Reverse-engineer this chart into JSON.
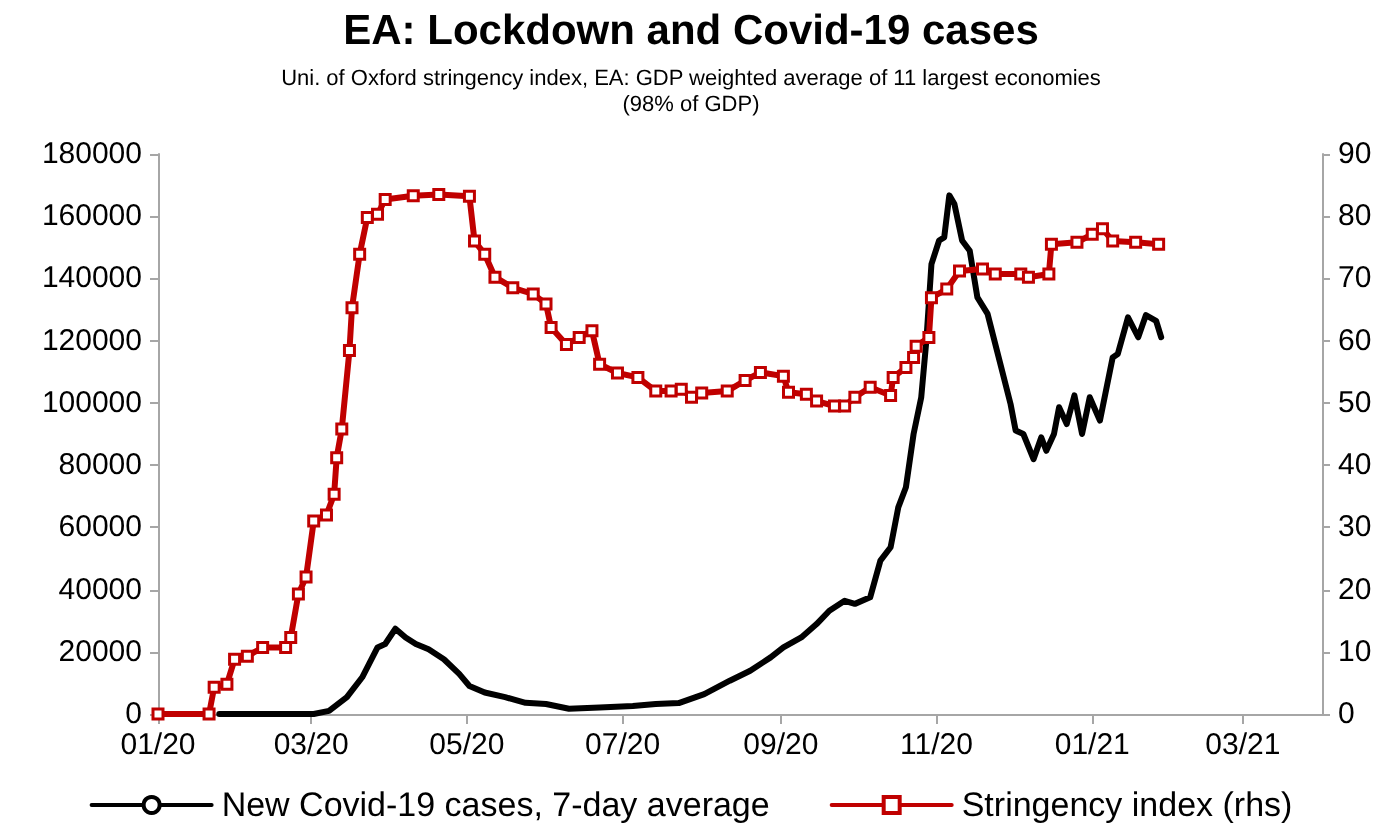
{
  "chart_data": {
    "type": "line",
    "title": "EA: Lockdown and Covid-19 cases",
    "subtitle": "Uni. of Oxford stringency index, EA: GDP weighted average of 11 largest economies\n(98% of GDP)",
    "xlim": [
      "2020-01-01",
      "2021-04-01"
    ],
    "xticks": [
      {
        "value": "2020-01-01",
        "label": "01/20"
      },
      {
        "value": "2020-03-01",
        "label": "03/20"
      },
      {
        "value": "2020-05-01",
        "label": "05/20"
      },
      {
        "value": "2020-07-01",
        "label": "07/20"
      },
      {
        "value": "2020-09-01",
        "label": "09/20"
      },
      {
        "value": "2020-11-01",
        "label": "11/20"
      },
      {
        "value": "2021-01-01",
        "label": "01/21"
      },
      {
        "value": "2021-03-01",
        "label": "03/21"
      }
    ],
    "ylim": [
      0,
      180000
    ],
    "yticks": [
      0,
      20000,
      40000,
      60000,
      80000,
      100000,
      120000,
      140000,
      160000,
      180000
    ],
    "y2lim": [
      0,
      90
    ],
    "y2ticks": [
      0,
      10,
      20,
      30,
      40,
      50,
      60,
      70,
      80,
      90
    ],
    "grid": false,
    "legend": "bottom",
    "line_style": "solid",
    "series": [
      {
        "name": "New Covid-19 cases, 7-day average",
        "color": "#000000",
        "marker": "none",
        "x": [
          "2020-01-25",
          "2020-03-02",
          "2020-03-08",
          "2020-03-15",
          "2020-03-21",
          "2020-03-27",
          "2020-03-30",
          "2020-04-03",
          "2020-04-07",
          "2020-04-11",
          "2020-04-16",
          "2020-04-22",
          "2020-04-28",
          "2020-05-02",
          "2020-05-08",
          "2020-05-16",
          "2020-05-24",
          "2020-06-01",
          "2020-06-10",
          "2020-06-22",
          "2020-07-05",
          "2020-07-14",
          "2020-07-23",
          "2020-08-02",
          "2020-08-12",
          "2020-08-20",
          "2020-08-28",
          "2020-09-02",
          "2020-09-09",
          "2020-09-15",
          "2020-09-20",
          "2020-09-26",
          "2020-09-30",
          "2020-10-06",
          "2020-10-10",
          "2020-10-14",
          "2020-10-17",
          "2020-10-20",
          "2020-10-23",
          "2020-10-26",
          "2020-10-28",
          "2020-10-30",
          "2020-11-02",
          "2020-11-04",
          "2020-11-06",
          "2020-11-08",
          "2020-11-11",
          "2020-11-14",
          "2020-11-17",
          "2020-11-21",
          "2020-11-26",
          "2020-11-30",
          "2020-12-02",
          "2020-12-05",
          "2020-12-09",
          "2020-12-12",
          "2020-12-14",
          "2020-12-17",
          "2020-12-19",
          "2020-12-22",
          "2020-12-25",
          "2020-12-28",
          "2020-12-31",
          "2021-01-04",
          "2021-01-09",
          "2021-01-11",
          "2021-01-15",
          "2021-01-19",
          "2021-01-22",
          "2021-01-26",
          "2021-01-28"
        ],
        "values": [
          0,
          0,
          1000,
          5400,
          11800,
          21400,
          22500,
          27400,
          24600,
          22500,
          20800,
          17600,
          12900,
          9000,
          6900,
          5400,
          3600,
          3200,
          1700,
          2100,
          2600,
          3200,
          3500,
          6400,
          10700,
          13900,
          18200,
          21400,
          24600,
          28900,
          33200,
          36400,
          35400,
          37500,
          49300,
          53600,
          66400,
          72900,
          90000,
          101800,
          120000,
          144600,
          152200,
          153200,
          166700,
          163900,
          152200,
          148900,
          133900,
          128600,
          112500,
          99600,
          91100,
          90000,
          81900,
          88900,
          84600,
          90000,
          98600,
          93200,
          102400,
          90000,
          101800,
          94300,
          114600,
          115700,
          127500,
          121100,
          128200,
          126400,
          121100
        ]
      },
      {
        "name": "Stringency index (rhs)",
        "color": "#c00000",
        "axis": "y2",
        "marker": "square",
        "x": [
          "2020-01-01",
          "2020-01-21",
          "2020-01-23",
          "2020-01-28",
          "2020-01-31",
          "2020-02-05",
          "2020-02-11",
          "2020-02-20",
          "2020-02-22",
          "2020-02-25",
          "2020-02-28",
          "2020-03-02",
          "2020-03-07",
          "2020-03-10",
          "2020-03-11",
          "2020-03-13",
          "2020-03-16",
          "2020-03-17",
          "2020-03-20",
          "2020-03-23",
          "2020-03-27",
          "2020-03-30",
          "2020-04-10",
          "2020-04-20",
          "2020-05-02",
          "2020-05-04",
          "2020-05-08",
          "2020-05-12",
          "2020-05-19",
          "2020-05-27",
          "2020-06-01",
          "2020-06-03",
          "2020-06-09",
          "2020-06-14",
          "2020-06-19",
          "2020-06-22",
          "2020-06-29",
          "2020-07-07",
          "2020-07-14",
          "2020-07-20",
          "2020-07-24",
          "2020-07-28",
          "2020-08-01",
          "2020-08-11",
          "2020-08-18",
          "2020-08-24",
          "2020-09-02",
          "2020-09-04",
          "2020-09-11",
          "2020-09-15",
          "2020-09-22",
          "2020-09-26",
          "2020-09-30",
          "2020-10-06",
          "2020-10-14",
          "2020-10-15",
          "2020-10-20",
          "2020-10-23",
          "2020-10-24",
          "2020-10-29",
          "2020-10-30",
          "2020-11-05",
          "2020-11-10",
          "2020-11-19",
          "2020-11-24",
          "2020-12-04",
          "2020-12-07",
          "2020-12-15",
          "2020-12-16",
          "2020-12-26",
          "2021-01-01",
          "2021-01-05",
          "2021-01-09",
          "2021-01-18",
          "2021-01-27"
        ],
        "values": [
          0,
          0,
          4.3,
          4.8,
          8.8,
          9.3,
          10.7,
          10.7,
          12.3,
          19.3,
          22,
          31,
          32,
          35.3,
          41.2,
          45.8,
          58.4,
          65.3,
          73.9,
          79.8,
          80.3,
          82.7,
          83.3,
          83.5,
          83.2,
          76,
          73.9,
          70.2,
          68.5,
          67.5,
          65.9,
          62.1,
          59.4,
          60.5,
          61.6,
          56.2,
          54.8,
          54.1,
          51.9,
          51.9,
          52.2,
          50.9,
          51.6,
          51.9,
          53.6,
          54.9,
          54.3,
          51.7,
          51.4,
          50.3,
          49.5,
          49.5,
          50.9,
          52.5,
          51.2,
          54.1,
          55.7,
          57.3,
          59.1,
          60.5,
          66.9,
          68.3,
          71.2,
          71.5,
          70.7,
          70.7,
          70.2,
          70.7,
          75.5,
          75.8,
          77.1,
          78.0,
          76.0,
          75.8,
          75.5
        ]
      }
    ]
  }
}
